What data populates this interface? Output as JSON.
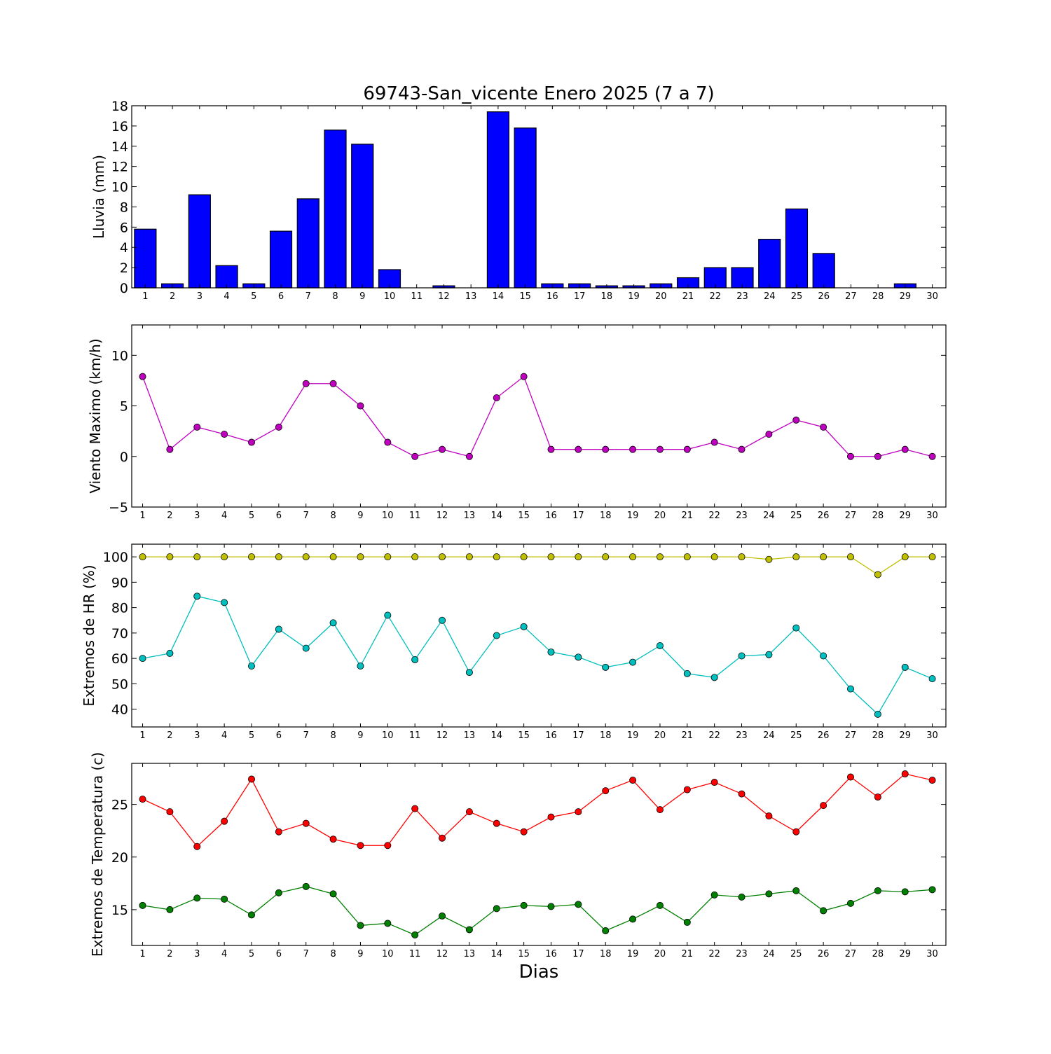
{
  "chart_data": [
    {
      "type": "bar",
      "title": "69743-San_vicente Enero 2025  (7 a 7)",
      "ylabel": "Lluvia (mm)",
      "xlabel": "",
      "categories": [
        1,
        2,
        3,
        4,
        5,
        6,
        7,
        8,
        9,
        10,
        11,
        12,
        13,
        14,
        15,
        16,
        17,
        18,
        19,
        20,
        21,
        22,
        23,
        24,
        25,
        26,
        27,
        28,
        29,
        30
      ],
      "ylim": [
        0,
        18
      ],
      "yticks": [
        0,
        2,
        4,
        6,
        8,
        10,
        12,
        14,
        16,
        18
      ],
      "color": "#0000ff",
      "values": [
        5.8,
        0.4,
        9.2,
        2.2,
        0.4,
        5.6,
        8.8,
        15.6,
        14.2,
        1.8,
        0.0,
        0.2,
        0.0,
        17.4,
        15.8,
        0.4,
        0.4,
        0.2,
        0.2,
        0.4,
        1.0,
        2.0,
        2.0,
        4.8,
        7.8,
        3.4,
        0.0,
        0.0,
        0.4,
        0.0
      ]
    },
    {
      "type": "line",
      "ylabel": "Viento Maximo (km/h)",
      "xlabel": "",
      "x": [
        1,
        2,
        3,
        4,
        5,
        6,
        7,
        8,
        9,
        10,
        11,
        12,
        13,
        14,
        15,
        16,
        17,
        18,
        19,
        20,
        21,
        22,
        23,
        24,
        25,
        26,
        27,
        28,
        29,
        30
      ],
      "ylim": [
        -5,
        13
      ],
      "yticks": [
        -5,
        0,
        5,
        10
      ],
      "series": [
        {
          "color": "#bf00bf",
          "values": [
            7.9,
            0.7,
            2.9,
            2.2,
            1.4,
            2.9,
            7.2,
            7.2,
            5.0,
            1.4,
            0.0,
            0.7,
            0.0,
            5.8,
            7.9,
            0.7,
            0.7,
            0.7,
            0.7,
            0.7,
            0.7,
            1.4,
            0.7,
            2.2,
            3.6,
            2.9,
            0.0,
            0.0,
            0.7,
            0.0
          ]
        }
      ]
    },
    {
      "type": "line",
      "ylabel": "Extremos de HR (%)",
      "xlabel": "",
      "x": [
        1,
        2,
        3,
        4,
        5,
        6,
        7,
        8,
        9,
        10,
        11,
        12,
        13,
        14,
        15,
        16,
        17,
        18,
        19,
        20,
        21,
        22,
        23,
        24,
        25,
        26,
        27,
        28,
        29,
        30
      ],
      "ylim": [
        33,
        105
      ],
      "yticks": [
        40,
        50,
        60,
        70,
        80,
        90,
        100
      ],
      "series": [
        {
          "color": "#bfbf00",
          "values": [
            100,
            100,
            100,
            100,
            100,
            100,
            100,
            100,
            100,
            100,
            100,
            100,
            100,
            100,
            100,
            100,
            100,
            100,
            100,
            100,
            100,
            100,
            100,
            99,
            100,
            100,
            100,
            93,
            100,
            100
          ]
        },
        {
          "color": "#00bfbf",
          "values": [
            60,
            62,
            84.5,
            82,
            57,
            71.5,
            64,
            74,
            57,
            77,
            59.5,
            75,
            54.5,
            69,
            72.5,
            62.5,
            60.5,
            56.5,
            58.5,
            65,
            54,
            52.5,
            61,
            61.5,
            72,
            61,
            48,
            38,
            56.5,
            52
          ]
        }
      ]
    },
    {
      "type": "line",
      "ylabel": "Extremos de Temperatura (c)",
      "xlabel": "Dias",
      "x": [
        1,
        2,
        3,
        4,
        5,
        6,
        7,
        8,
        9,
        10,
        11,
        12,
        13,
        14,
        15,
        16,
        17,
        18,
        19,
        20,
        21,
        22,
        23,
        24,
        25,
        26,
        27,
        28,
        29,
        30
      ],
      "ylim": [
        11.6,
        28.9
      ],
      "yticks": [
        15,
        20,
        25
      ],
      "series": [
        {
          "color": "#ff0000",
          "values": [
            25.5,
            24.3,
            21.0,
            23.4,
            27.4,
            22.4,
            23.2,
            21.7,
            21.1,
            21.1,
            24.6,
            21.8,
            24.3,
            23.2,
            22.4,
            23.8,
            24.3,
            26.3,
            27.3,
            24.5,
            26.4,
            27.1,
            26.0,
            23.9,
            22.4,
            24.9,
            27.6,
            25.7,
            27.9,
            27.3
          ]
        },
        {
          "color": "#008000",
          "values": [
            15.4,
            15.0,
            16.1,
            16.0,
            14.5,
            16.6,
            17.2,
            16.5,
            13.5,
            13.7,
            12.6,
            14.4,
            13.1,
            15.1,
            15.4,
            15.3,
            15.5,
            13.0,
            14.1,
            15.4,
            13.8,
            16.4,
            16.2,
            16.5,
            16.8,
            14.9,
            15.6,
            16.8,
            16.7,
            16.9
          ]
        }
      ]
    }
  ]
}
